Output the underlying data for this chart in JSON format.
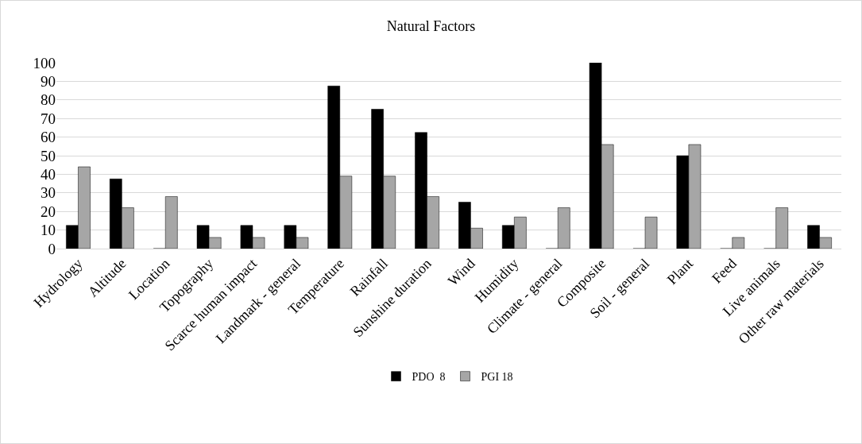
{
  "chart_data": {
    "type": "bar",
    "title": "Natural Factors",
    "categories": [
      "Hydrology",
      "Altitude",
      "Location",
      "Topography",
      "Scarce human impact",
      "Landmark - general",
      "Temperature",
      "Rainfall",
      "Sunshine duration",
      "Wind",
      "Humidity",
      "Climate - general",
      "Composite",
      "Soil - general",
      "Plant",
      "Feed",
      "Live animals",
      "Other raw materials"
    ],
    "series": [
      {
        "name": "PDO  8",
        "color": "#000000",
        "values": [
          12.5,
          37.5,
          0,
          12.5,
          12.5,
          12.5,
          87.5,
          75,
          62.5,
          25,
          12.5,
          0,
          100,
          0,
          50,
          0,
          0,
          12.5
        ]
      },
      {
        "name": "PGI 18",
        "color": "#a6a6a6",
        "values": [
          44,
          22,
          28,
          6,
          6,
          6,
          39,
          39,
          28,
          11,
          17,
          22,
          56,
          17,
          56,
          6,
          22,
          6
        ]
      }
    ],
    "ylim": [
      0,
      100
    ],
    "yticks": [
      0,
      10,
      20,
      30,
      40,
      50,
      60,
      70,
      80,
      90,
      100
    ],
    "grid": "y",
    "legend": "bottom"
  }
}
